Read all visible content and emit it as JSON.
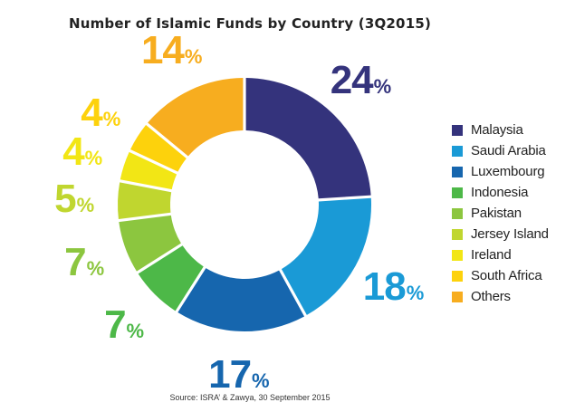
{
  "chart_data": {
    "type": "pie",
    "title": "Number of Islamic Funds by Country (3Q2015)",
    "source": "Source: ISRA’ & Zawya, 30 September 2015",
    "categories": [
      "Malaysia",
      "Saudi Arabia",
      "Luxembourg",
      "Indonesia",
      "Pakistan",
      "Jersey Island",
      "Ireland",
      "South Africa",
      "Others"
    ],
    "values": [
      24,
      18,
      17,
      7,
      7,
      5,
      4,
      4,
      14
    ],
    "labels": [
      "24",
      "18",
      "17",
      "7",
      "7",
      "5",
      "4",
      "4",
      "14"
    ],
    "unit": "%",
    "colors": [
      "#34337c",
      "#1a9ad6",
      "#1666ae",
      "#4db848",
      "#8cc63f",
      "#c0d62f",
      "#f2e615",
      "#fdd20c",
      "#f7ad1f"
    ],
    "legend_position": "right"
  }
}
